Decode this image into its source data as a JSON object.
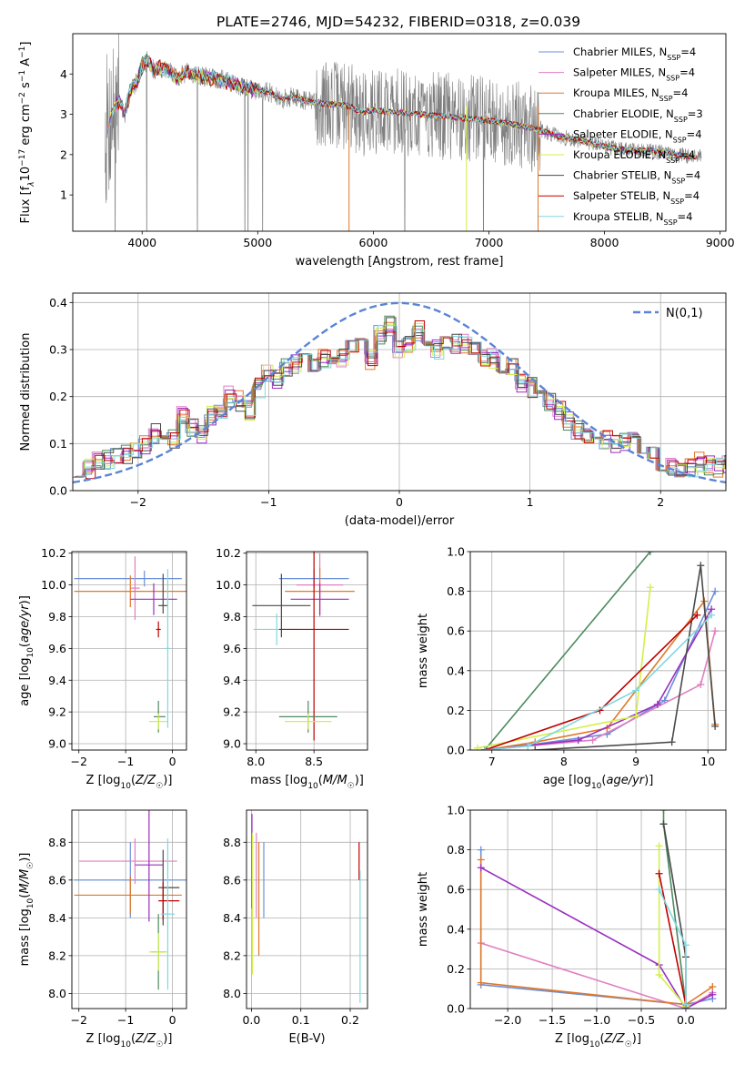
{
  "page_title": "PLATE=2746, MJD=54232, FIBERID=0318, z=0.039",
  "series_colors": [
    "#6a8fd8",
    "#e07fc0",
    "#e0782a",
    "#4d8a5e",
    "#9a2fc0",
    "#d4ef4a",
    "#4a4a4a",
    "#c00000",
    "#7fd8e0"
  ],
  "chart_data": [
    {
      "id": "spectrum",
      "type": "line",
      "xlabel": "wavelength [Angstrom, rest frame]",
      "ylabel": "Flux [f_λ 10^-17 erg cm^-2 s^-1 A^-1]",
      "xlim": [
        3400,
        9050
      ],
      "ylim": [
        0.1,
        5.0
      ],
      "xticks": [
        4000,
        5000,
        6000,
        7000,
        8000,
        9000
      ],
      "yticks": [
        1,
        2,
        3,
        4
      ],
      "grid": false,
      "legend_position": "top-right",
      "data_color": "#808080",
      "legend": [
        {
          "base": "Chabrier MILES, N",
          "sub": "SSP",
          "tail": "=4"
        },
        {
          "base": "Salpeter MILES, N",
          "sub": "SSP",
          "tail": "=4"
        },
        {
          "base": "Kroupa MILES, N",
          "sub": "SSP",
          "tail": "=4"
        },
        {
          "base": "Chabrier ELODIE, N",
          "sub": "SSP",
          "tail": "=3"
        },
        {
          "base": "Salpeter ELODIE, N",
          "sub": "SSP",
          "tail": "=4"
        },
        {
          "base": "Kroupa ELODIE, N",
          "sub": "SSP",
          "tail": "=4"
        },
        {
          "base": "Chabrier STELIB, N",
          "sub": "SSP",
          "tail": "=4"
        },
        {
          "base": "Salpeter STELIB, N",
          "sub": "SSP",
          "tail": "=4"
        },
        {
          "base": "Kroupa STELIB, N",
          "sub": "SSP",
          "tail": "=4"
        }
      ],
      "continuum": [
        [
          3700,
          2.6
        ],
        [
          3740,
          3.1
        ],
        [
          3800,
          3.3
        ],
        [
          3850,
          3.0
        ],
        [
          3900,
          3.6
        ],
        [
          3950,
          3.8
        ],
        [
          4000,
          4.2
        ],
        [
          4050,
          4.35
        ],
        [
          4100,
          4.1
        ],
        [
          4200,
          4.15
        ],
        [
          4300,
          3.9
        ],
        [
          4400,
          4.05
        ],
        [
          4500,
          3.95
        ],
        [
          4600,
          3.9
        ],
        [
          4700,
          3.85
        ],
        [
          4800,
          3.75
        ],
        [
          4900,
          3.65
        ],
        [
          5000,
          3.6
        ],
        [
          5100,
          3.55
        ],
        [
          5200,
          3.35
        ],
        [
          5300,
          3.45
        ],
        [
          5400,
          3.35
        ],
        [
          5500,
          3.3
        ],
        [
          5600,
          3.25
        ],
        [
          5700,
          3.25
        ],
        [
          5800,
          3.2
        ],
        [
          5900,
          3.05
        ],
        [
          6000,
          3.1
        ],
        [
          6200,
          3.05
        ],
        [
          6400,
          3.0
        ],
        [
          6600,
          2.95
        ],
        [
          6800,
          2.9
        ],
        [
          7000,
          2.85
        ],
        [
          7200,
          2.75
        ],
        [
          7400,
          2.65
        ],
        [
          7600,
          2.45
        ],
        [
          7800,
          2.35
        ],
        [
          8000,
          2.2
        ],
        [
          8200,
          2.1
        ],
        [
          8400,
          2.1
        ],
        [
          8600,
          2.0
        ],
        [
          8800,
          1.95
        ]
      ],
      "noise_seed": 7
    },
    {
      "id": "residuals",
      "type": "histogram",
      "xlabel": "(data-model)/error",
      "ylabel": "Normed distribution",
      "xlim": [
        -2.5,
        2.5
      ],
      "ylim": [
        0.0,
        0.42
      ],
      "xticks": [
        -2,
        -1,
        0,
        1,
        2
      ],
      "yticks": [
        0.0,
        0.1,
        0.2,
        0.3,
        0.4
      ],
      "grid": true,
      "legend_position": "top-right",
      "gaussian_label": "N(0,1)",
      "gaussian_color": "#5b84d6",
      "bin_width": 0.1,
      "base_profile": [
        0.04,
        0.045,
        0.06,
        0.065,
        0.08,
        0.075,
        0.09,
        0.1,
        0.12,
        0.13,
        0.11,
        0.16,
        0.13,
        0.12,
        0.16,
        0.175,
        0.2,
        0.19,
        0.17,
        0.22,
        0.25,
        0.24,
        0.26,
        0.27,
        0.3,
        0.27,
        0.28,
        0.29,
        0.28,
        0.3,
        0.31,
        0.28,
        0.33,
        0.35,
        0.3,
        0.31,
        0.34,
        0.33,
        0.3,
        0.32,
        0.31,
        0.31,
        0.3,
        0.28,
        0.28,
        0.27,
        0.26,
        0.23,
        0.22,
        0.21,
        0.19,
        0.17,
        0.15,
        0.13,
        0.12,
        0.13,
        0.11,
        0.1,
        0.1,
        0.12,
        0.09,
        0.07,
        0.06,
        0.055,
        0.05,
        0.05,
        0.06,
        0.055,
        0.05,
        0.055
      ],
      "noise_seed": 11
    },
    {
      "id": "age-vs-z",
      "type": "errorbar",
      "xlabel": "Z [log10(Z/Z☉)]",
      "ylabel": "age [log10(age/yr)]",
      "xlim": [
        -2.15,
        0.3
      ],
      "ylim": [
        8.96,
        10.21
      ],
      "xticks": [
        -2,
        -1,
        0
      ],
      "yticks": [
        9.0,
        9.2,
        9.4,
        9.6,
        9.8,
        10.0,
        10.2
      ],
      "grid": true,
      "points": [
        {
          "s": 0,
          "x": -0.6,
          "xerr": [
            1.5,
            0.8
          ],
          "y": 10.04,
          "yerr": [
            0.05,
            0.05
          ]
        },
        {
          "s": 1,
          "x": -0.8,
          "xerr": [
            0.1,
            0.1
          ],
          "y": 9.98,
          "yerr": [
            0.2,
            0.2
          ]
        },
        {
          "s": 2,
          "x": -0.9,
          "xerr": [
            1.2,
            1.2
          ],
          "y": 9.96,
          "yerr": [
            0.1,
            0.1
          ]
        },
        {
          "s": 4,
          "x": -0.4,
          "xerr": [
            0.5,
            0.5
          ],
          "y": 9.91,
          "yerr": [
            0.1,
            0.1
          ]
        },
        {
          "s": 6,
          "x": -0.2,
          "xerr": [
            0.1,
            0.1
          ],
          "y": 9.87,
          "yerr": [
            0.05,
            0.2
          ]
        },
        {
          "s": 7,
          "x": -0.3,
          "xerr": [
            0.05,
            0.05
          ],
          "y": 9.72,
          "yerr": [
            0.05,
            0.05
          ]
        },
        {
          "s": 3,
          "x": -0.3,
          "xerr": [
            0.1,
            0.15
          ],
          "y": 9.17,
          "yerr": [
            0.1,
            0.1
          ]
        },
        {
          "s": 5,
          "x": -0.3,
          "xerr": [
            0.2,
            0.2
          ],
          "y": 9.14,
          "yerr": [
            0.05,
            0.05
          ]
        },
        {
          "s": 8,
          "x": -0.1,
          "xerr": [
            0.05,
            0.05
          ],
          "y": 9.6,
          "yerr": [
            0.5,
            0.5
          ]
        }
      ]
    },
    {
      "id": "age-vs-mass",
      "type": "errorbar",
      "xlabel": "mass [log10(M/M☉)]",
      "ylabel": "",
      "xlim": [
        7.92,
        8.96
      ],
      "ylim": [
        8.96,
        10.21
      ],
      "xticks": [
        8.0,
        8.5
      ],
      "yticks": [
        9.0,
        9.2,
        9.4,
        9.6,
        9.8,
        10.0,
        10.2
      ],
      "grid": true,
      "points": [
        {
          "s": 0,
          "x": 8.5,
          "xerr": [
            0.3,
            0.3
          ],
          "y": 10.04,
          "yerr": [
            0.06,
            0.06
          ]
        },
        {
          "s": 1,
          "x": 8.55,
          "xerr": [
            0.2,
            0.2
          ],
          "y": 10.0,
          "yerr": [
            0.2,
            0.2
          ]
        },
        {
          "s": 2,
          "x": 8.55,
          "xerr": [
            0.3,
            0.3
          ],
          "y": 9.96,
          "yerr": [
            0.15,
            0.15
          ]
        },
        {
          "s": 4,
          "x": 8.55,
          "xerr": [
            0.25,
            0.25
          ],
          "y": 9.91,
          "yerr": [
            0.1,
            0.1
          ]
        },
        {
          "s": 6,
          "x": 8.22,
          "xerr": [
            0.25,
            0.25
          ],
          "y": 9.87,
          "yerr": [
            0.2,
            0.2
          ]
        },
        {
          "s": 8,
          "x": 8.18,
          "xerr": [
            0.2,
            0.2
          ],
          "y": 9.72,
          "yerr": [
            0.1,
            0.1
          ]
        },
        {
          "s": 7,
          "x": 8.5,
          "xerr": [
            0.3,
            0.3
          ],
          "y": 9.72,
          "yerr": [
            0.7,
            0.7
          ]
        },
        {
          "s": 3,
          "x": 8.45,
          "xerr": [
            0.25,
            0.25
          ],
          "y": 9.17,
          "yerr": [
            0.1,
            0.1
          ]
        },
        {
          "s": 5,
          "x": 8.45,
          "xerr": [
            0.2,
            0.2
          ],
          "y": 9.14,
          "yerr": [
            0.05,
            0.05
          ]
        }
      ]
    },
    {
      "id": "weight-vs-age",
      "type": "line",
      "xlabel": "age [log10(age/yr)]",
      "ylabel": "mass weight",
      "xlim": [
        6.7,
        10.25
      ],
      "ylim": [
        0.0,
        1.0
      ],
      "xticks": [
        7,
        8,
        9,
        10
      ],
      "yticks": [
        0.0,
        0.2,
        0.4,
        0.6,
        0.8,
        1.0
      ],
      "grid": true,
      "series": [
        {
          "s": 0,
          "x": [
            6.9,
            7.6,
            8.6,
            9.4,
            10.1
          ],
          "y": [
            0.0,
            0.03,
            0.08,
            0.25,
            0.8
          ]
        },
        {
          "s": 1,
          "x": [
            6.9,
            7.5,
            8.4,
            9.9,
            10.1
          ],
          "y": [
            0.0,
            0.02,
            0.05,
            0.33,
            0.6
          ]
        },
        {
          "s": 2,
          "x": [
            6.9,
            7.6,
            8.6,
            9.95,
            10.1
          ],
          "y": [
            0.0,
            0.04,
            0.11,
            0.75,
            0.13
          ]
        },
        {
          "s": 3,
          "x": [
            6.9,
            9.2
          ],
          "y": [
            0.0,
            1.0
          ]
        },
        {
          "s": 4,
          "x": [
            6.9,
            8.2,
            9.3,
            10.05
          ],
          "y": [
            0.0,
            0.05,
            0.23,
            0.71
          ]
        },
        {
          "s": 5,
          "x": [
            6.8,
            9.0,
            9.2
          ],
          "y": [
            0.01,
            0.17,
            0.82
          ]
        },
        {
          "s": 6,
          "x": [
            7.6,
            9.5,
            9.9,
            10.1
          ],
          "y": [
            0.0,
            0.04,
            0.93,
            0.12
          ]
        },
        {
          "s": 7,
          "x": [
            6.9,
            8.5,
            9.85
          ],
          "y": [
            0.0,
            0.2,
            0.68
          ]
        },
        {
          "s": 8,
          "x": [
            6.9,
            7.5,
            9.0,
            10.05
          ],
          "y": [
            0.0,
            0.02,
            0.3,
            0.68
          ]
        }
      ]
    },
    {
      "id": "mass-vs-z",
      "type": "errorbar",
      "xlabel": "Z [log10(Z/Z☉)]",
      "ylabel": "mass [log10(M/M☉)]",
      "xlim": [
        -2.15,
        0.3
      ],
      "ylim": [
        7.92,
        8.97
      ],
      "xticks": [
        -2,
        -1,
        0
      ],
      "yticks": [
        8.0,
        8.2,
        8.4,
        8.6,
        8.8
      ],
      "grid": true,
      "points": [
        {
          "s": 0,
          "x": -0.9,
          "xerr": [
            1.2,
            1.2
          ],
          "y": 8.6,
          "yerr": [
            0.2,
            0.2
          ]
        },
        {
          "s": 1,
          "x": -0.8,
          "xerr": [
            1.2,
            0.9
          ],
          "y": 8.7,
          "yerr": [
            0.12,
            0.12
          ]
        },
        {
          "s": 2,
          "x": -0.9,
          "xerr": [
            1.2,
            1.1
          ],
          "y": 8.52,
          "yerr": [
            0.1,
            0.1
          ]
        },
        {
          "s": 4,
          "x": -0.5,
          "xerr": [
            0.3,
            0.3
          ],
          "y": 8.68,
          "yerr": [
            0.3,
            0.3
          ]
        },
        {
          "s": 6,
          "x": -0.2,
          "xerr": [
            0.1,
            0.35
          ],
          "y": 8.56,
          "yerr": [
            0.2,
            0.2
          ]
        },
        {
          "s": 7,
          "x": -0.2,
          "xerr": [
            0.1,
            0.35
          ],
          "y": 8.49,
          "yerr": [
            0.1,
            0.1
          ]
        },
        {
          "s": 8,
          "x": -0.1,
          "xerr": [
            0.15,
            0.15
          ],
          "y": 8.42,
          "yerr": [
            0.4,
            0.4
          ]
        },
        {
          "s": 3,
          "x": -0.3,
          "xerr": [
            0.15,
            0.15
          ],
          "y": 8.22,
          "yerr": [
            0.2,
            0.2
          ]
        },
        {
          "s": 5,
          "x": -0.3,
          "xerr": [
            0.2,
            0.2
          ],
          "y": 8.22,
          "yerr": [
            0.1,
            0.1
          ]
        }
      ]
    },
    {
      "id": "mass-vs-ebv",
      "type": "errorbar",
      "xlabel": "E(B-V)",
      "ylabel": "",
      "xlim": [
        -0.01,
        0.235
      ],
      "ylim": [
        7.92,
        8.97
      ],
      "xticks": [
        0.0,
        0.1,
        0.2
      ],
      "yticks": [
        8.0,
        8.2,
        8.4,
        8.6,
        8.8
      ],
      "grid": true,
      "points": [
        {
          "s": 4,
          "x": 0.001,
          "xerr": [
            0,
            0
          ],
          "y": 8.7,
          "yerr": [
            0.25,
            0.25
          ]
        },
        {
          "s": 5,
          "x": 0.002,
          "xerr": [
            0,
            0
          ],
          "y": 8.55,
          "yerr": [
            0.45,
            0.3
          ]
        },
        {
          "s": 1,
          "x": 0.01,
          "xerr": [
            0,
            0
          ],
          "y": 8.6,
          "yerr": [
            0.2,
            0.25
          ]
        },
        {
          "s": 2,
          "x": 0.015,
          "xerr": [
            0,
            0
          ],
          "y": 8.5,
          "yerr": [
            0.3,
            0.3
          ]
        },
        {
          "s": 0,
          "x": 0.025,
          "xerr": [
            0,
            0
          ],
          "y": 8.6,
          "yerr": [
            0.2,
            0.2
          ]
        },
        {
          "s": 7,
          "x": 0.218,
          "xerr": [
            0,
            0
          ],
          "y": 8.7,
          "yerr": [
            0.1,
            0.1
          ]
        },
        {
          "s": 8,
          "x": 0.22,
          "xerr": [
            0,
            0
          ],
          "y": 8.3,
          "yerr": [
            0.35,
            0.35
          ]
        }
      ]
    },
    {
      "id": "weight-vs-z",
      "type": "line",
      "xlabel": "Z [log10(Z/Z☉)]",
      "ylabel": "mass weight",
      "xlim": [
        -2.42,
        0.45
      ],
      "ylim": [
        0.0,
        1.0
      ],
      "xticks": [
        -2.0,
        -1.5,
        -1.0,
        -0.5,
        0.0
      ],
      "yticks": [
        0.0,
        0.2,
        0.4,
        0.6,
        0.8,
        1.0
      ],
      "grid": true,
      "series": [
        {
          "s": 0,
          "x": [
            -2.3,
            -2.3,
            0.0,
            0.3
          ],
          "y": [
            0.8,
            0.12,
            0.02,
            0.05
          ]
        },
        {
          "s": 1,
          "x": [
            -2.3,
            0.0,
            0.3
          ],
          "y": [
            0.33,
            0.0,
            0.08
          ]
        },
        {
          "s": 2,
          "x": [
            -2.3,
            -2.3,
            0.0,
            0.3
          ],
          "y": [
            0.75,
            0.13,
            0.02,
            0.11
          ]
        },
        {
          "s": 3,
          "x": [
            -0.25,
            -0.25,
            0.0
          ],
          "y": [
            1.0,
            0.93,
            0.02
          ]
        },
        {
          "s": 4,
          "x": [
            -2.3,
            -0.3,
            0.0,
            0.3
          ],
          "y": [
            0.71,
            0.22,
            0.0,
            0.07
          ]
        },
        {
          "s": 5,
          "x": [
            -0.3,
            -0.3,
            0.0
          ],
          "y": [
            0.82,
            0.17,
            0.01
          ]
        },
        {
          "s": 6,
          "x": [
            -0.25,
            0.0,
            0.0
          ],
          "y": [
            0.93,
            0.26,
            0.0
          ]
        },
        {
          "s": 7,
          "x": [
            -0.3,
            0.0
          ],
          "y": [
            0.68,
            0.02
          ]
        },
        {
          "s": 8,
          "x": [
            -0.3,
            0.0,
            0.0
          ],
          "y": [
            0.6,
            0.32,
            0.02
          ]
        }
      ]
    }
  ]
}
